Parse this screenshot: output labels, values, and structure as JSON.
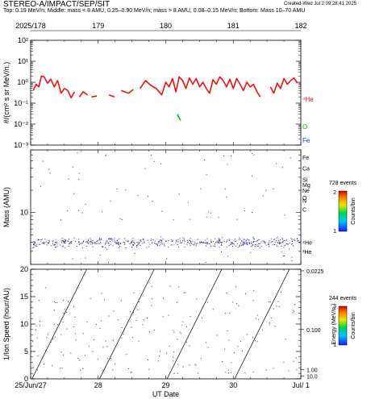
{
  "header": {
    "title": "STEREO-A/IMPACT/SEP/SIT",
    "subtitle": "Top: 0.19 MeV/n; Middle: mass < 8 AMU, 0.25–0.90 MeV/n; mass > 8 AMU, 0.08–0.15 MeV/n; Bottom: Mass 10–70 AMU",
    "created": "Created-Wed Jul  2 09:28:41 2025"
  },
  "top_axis": {
    "labels": [
      "2025/178",
      "179",
      "180",
      "181",
      "182"
    ]
  },
  "bottom_axis": {
    "labels": [
      "25/Jun/27",
      "28",
      "29",
      "30",
      "Jul/ 1"
    ],
    "xlabel": "UT Date"
  },
  "colors": {
    "he4": "#ee1111",
    "o": "#11bb11",
    "fe": "#1133ee",
    "dots": "#22229a"
  },
  "chart_data": [
    {
      "type": "line",
      "panel": "top",
      "ylabel": "#/(cm² s sr MeV/n.)",
      "yscale": "log",
      "ylim": [
        0.001,
        100
      ],
      "xlim": [
        178,
        182
      ],
      "ytick_labels": [
        "10⁻³",
        "10⁻²",
        "10⁻¹",
        "10⁰",
        "10¹",
        "10²"
      ],
      "legend": [
        "⁴He",
        "O",
        "Fe"
      ],
      "series": [
        {
          "name": "⁴He",
          "color": "#ee1111",
          "segments": [
            {
              "x": [
                178.04,
                178.08,
                178.12,
                178.16,
                178.2,
                178.25,
                178.3,
                178.35,
                178.4,
                178.45,
                178.5,
                178.55,
                178.6,
                178.65
              ],
              "y": [
                0.4,
                0.8,
                0.6,
                2.0,
                1.8,
                0.9,
                1.4,
                0.6,
                1.2,
                0.3,
                0.5,
                0.4,
                0.18,
                0.35
              ]
            },
            {
              "x": [
                178.72,
                178.78,
                178.84
              ],
              "y": [
                0.2,
                0.35,
                0.25
              ]
            },
            {
              "x": [
                178.9,
                178.98
              ],
              "y": [
                0.2,
                0.22
              ]
            },
            {
              "x": [
                179.16,
                179.24
              ],
              "y": [
                0.25,
                0.2
              ]
            },
            {
              "x": [
                179.34,
                179.45,
                179.52
              ],
              "y": [
                0.4,
                0.3,
                0.45
              ]
            },
            {
              "x": [
                179.62,
                179.7,
                179.78,
                179.86,
                179.94,
                180.0,
                180.05,
                180.1,
                180.15,
                180.2,
                180.25,
                180.3,
                180.35,
                180.4,
                180.45,
                180.5,
                180.55,
                180.6,
                180.65,
                180.7,
                180.75,
                180.8,
                180.85,
                180.9,
                180.95,
                181.0,
                181.05,
                181.1,
                181.15,
                181.2,
                181.25,
                181.3,
                181.35,
                181.4
              ],
              "y": [
                0.5,
                1.2,
                0.7,
                0.5,
                0.25,
                1.0,
                0.6,
                1.5,
                0.35,
                1.8,
                1.2,
                0.5,
                1.6,
                0.8,
                1.5,
                0.6,
                1.0,
                0.5,
                0.3,
                1.3,
                0.8,
                1.8,
                1.2,
                0.6,
                1.4,
                0.5,
                1.5,
                0.8,
                0.4,
                1.0,
                0.6,
                0.8,
                0.35,
                0.2
              ]
            },
            {
              "x": [
                181.55,
                181.6,
                181.65,
                181.7,
                181.75,
                181.8,
                181.85,
                181.9,
                181.95
              ],
              "y": [
                0.6,
                0.3,
                0.9,
                0.5,
                1.5,
                0.8,
                1.2,
                1.6,
                0.9
              ]
            }
          ]
        },
        {
          "name": "O",
          "color": "#11bb11",
          "segments": [
            {
              "x": [
                180.17,
                180.22
              ],
              "y": [
                0.03,
                0.015
              ]
            }
          ]
        }
      ]
    },
    {
      "type": "scatter",
      "panel": "middle",
      "ylabel": "Mass (AMU)",
      "yscale": "log",
      "ylim": [
        2,
        70
      ],
      "ytick_labels": [
        "10"
      ],
      "element_labels": [
        "Fe",
        "Ca",
        "Si",
        "Mg",
        "Ne",
        "O",
        "C",
        "N",
        "⁴He",
        "³He"
      ],
      "colorbar": {
        "title": "728 events",
        "label": "Counts/bin",
        "ticks": [
          "2",
          "1"
        ]
      }
    },
    {
      "type": "scatter",
      "panel": "bottom",
      "ylabel": "1/Ion Speed (hour/AU)",
      "ylim": [
        0,
        20
      ],
      "ytick_labels": [
        "0",
        "5",
        "10",
        "15",
        "20"
      ],
      "right_tick_labels": [
        "0.0225",
        "0.100",
        "1.00",
        "10.0"
      ],
      "right_axis_label": "Energy (MeV/n.)",
      "colorbar": {
        "title": "244 events",
        "label": "Counts/bin",
        "ticks": [
          "2",
          "1"
        ]
      }
    }
  ]
}
